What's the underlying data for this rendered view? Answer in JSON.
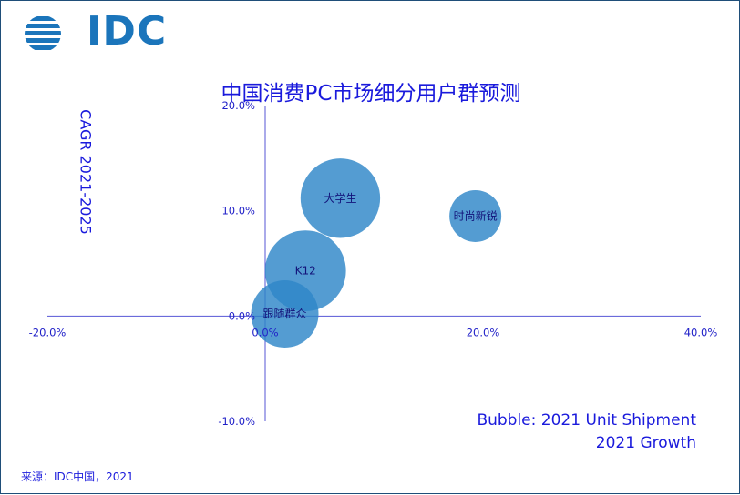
{
  "logo": {
    "text": "IDC"
  },
  "chart_data": {
    "type": "scatter",
    "subtype": "bubble",
    "title": "中国消费PC市场细分用户群预测",
    "ylabel": "CAGR 2021-2025",
    "xlabel": "",
    "xlim": [
      -20,
      40
    ],
    "ylim": [
      -10,
      20
    ],
    "x_ticks": [
      {
        "value": -20,
        "label": "-20.0%"
      },
      {
        "value": 0,
        "label": "0.0%"
      },
      {
        "value": 20,
        "label": "20.0%"
      },
      {
        "value": 40,
        "label": "40.0%"
      }
    ],
    "y_ticks": [
      {
        "value": 20,
        "label": "20.0%"
      },
      {
        "value": 10,
        "label": "10.0%"
      },
      {
        "value": 0,
        "label": "0.0%"
      },
      {
        "value": -10,
        "label": "-10.0%"
      }
    ],
    "bubbles": [
      {
        "name": "跟随群众",
        "x": 1.8,
        "y": 0.2,
        "size": 1.0
      },
      {
        "name": "K12",
        "x": 3.7,
        "y": 4.3,
        "size": 1.2
      },
      {
        "name": "大学生",
        "x": 6.9,
        "y": 11.2,
        "size": 1.18
      },
      {
        "name": "时尚新锐",
        "x": 19.3,
        "y": 9.5,
        "size": 0.77
      }
    ],
    "bubble_color": "#2e86c8",
    "bubble_note": "Bubble: 2021 Unit Shipment",
    "x_note": "2021 Growth"
  },
  "source": "来源：IDC中国，2021"
}
